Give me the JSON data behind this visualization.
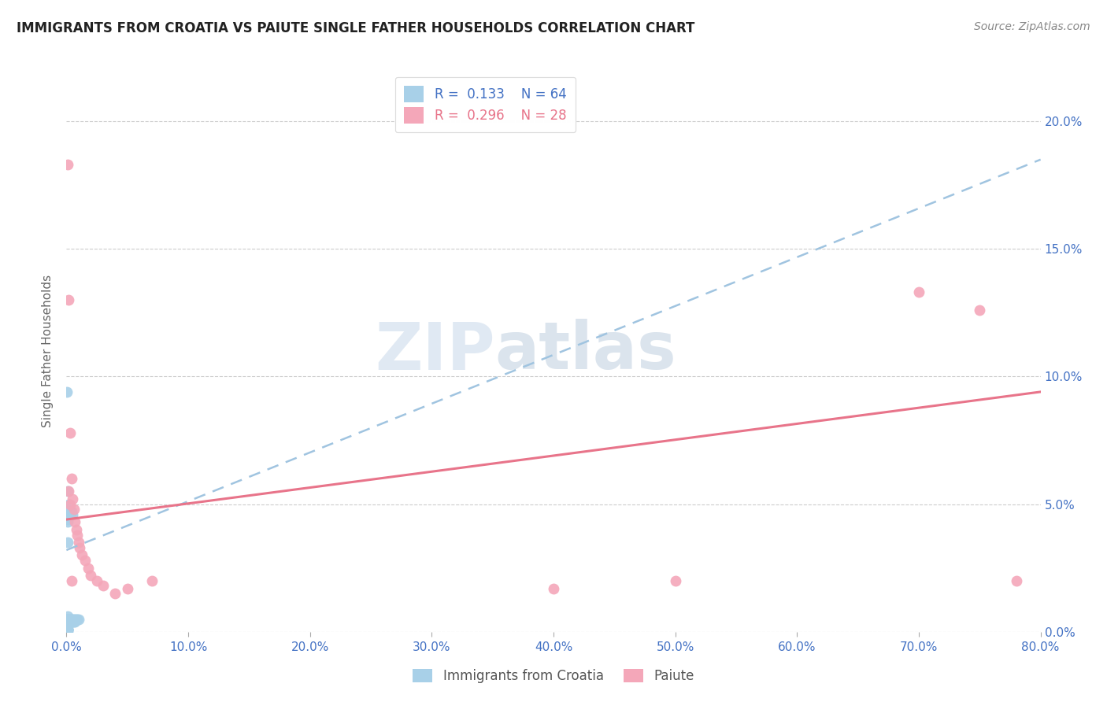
{
  "title": "IMMIGRANTS FROM CROATIA VS PAIUTE SINGLE FATHER HOUSEHOLDS CORRELATION CHART",
  "source": "Source: ZipAtlas.com",
  "xlabel_label": "Immigrants from Croatia",
  "ylabel_label": "Single Father Households",
  "legend_label1": "Immigrants from Croatia",
  "legend_label2": "Paiute",
  "R1": 0.133,
  "N1": 64,
  "R2": 0.296,
  "N2": 28,
  "color_blue": "#A8D0E8",
  "color_pink": "#F4A7B9",
  "color_blue_line": "#A0C4E0",
  "color_pink_line": "#E8748A",
  "color_blue_text": "#4472C4",
  "color_pink_text": "#E8748A",
  "color_axis": "#4472C4",
  "xlim": [
    0.0,
    0.8
  ],
  "ylim": [
    0.0,
    0.22
  ],
  "blue_scatter_x": [
    0.0003,
    0.0003,
    0.0003,
    0.0004,
    0.0004,
    0.0004,
    0.0005,
    0.0005,
    0.0005,
    0.0006,
    0.0006,
    0.0006,
    0.0007,
    0.0007,
    0.0008,
    0.0008,
    0.0009,
    0.0009,
    0.001,
    0.001,
    0.001,
    0.001,
    0.001,
    0.001,
    0.001,
    0.001,
    0.001,
    0.001,
    0.001,
    0.001,
    0.001,
    0.001,
    0.001,
    0.001,
    0.001,
    0.0015,
    0.0015,
    0.0015,
    0.002,
    0.002,
    0.002,
    0.002,
    0.002,
    0.003,
    0.003,
    0.003,
    0.003,
    0.004,
    0.004,
    0.004,
    0.005,
    0.005,
    0.005,
    0.006,
    0.006,
    0.007,
    0.007,
    0.008,
    0.009,
    0.01,
    0.0005,
    0.0003,
    0.0008,
    0.001
  ],
  "blue_scatter_y": [
    0.005,
    0.004,
    0.003,
    0.005,
    0.004,
    0.003,
    0.005,
    0.004,
    0.003,
    0.005,
    0.004,
    0.003,
    0.004,
    0.003,
    0.005,
    0.003,
    0.004,
    0.003,
    0.055,
    0.048,
    0.047,
    0.046,
    0.045,
    0.044,
    0.043,
    0.006,
    0.005,
    0.004,
    0.003,
    0.002,
    0.001,
    0.001,
    0.001,
    0.001,
    0.001,
    0.005,
    0.004,
    0.003,
    0.05,
    0.047,
    0.046,
    0.005,
    0.004,
    0.048,
    0.047,
    0.046,
    0.005,
    0.047,
    0.005,
    0.004,
    0.046,
    0.005,
    0.004,
    0.005,
    0.004,
    0.005,
    0.004,
    0.005,
    0.005,
    0.005,
    0.094,
    0.0,
    0.0,
    0.035
  ],
  "pink_scatter_x": [
    0.001,
    0.002,
    0.003,
    0.004,
    0.005,
    0.006,
    0.007,
    0.008,
    0.009,
    0.01,
    0.011,
    0.013,
    0.015,
    0.018,
    0.02,
    0.025,
    0.03,
    0.04,
    0.05,
    0.07,
    0.4,
    0.5,
    0.7,
    0.75,
    0.002,
    0.003,
    0.004,
    0.78
  ],
  "pink_scatter_y": [
    0.183,
    0.13,
    0.078,
    0.06,
    0.052,
    0.048,
    0.043,
    0.04,
    0.038,
    0.035,
    0.033,
    0.03,
    0.028,
    0.025,
    0.022,
    0.02,
    0.018,
    0.015,
    0.017,
    0.02,
    0.017,
    0.02,
    0.133,
    0.126,
    0.055,
    0.05,
    0.02,
    0.02
  ],
  "blue_trend_x": [
    0.0,
    0.8
  ],
  "blue_trend_y": [
    0.032,
    0.185
  ],
  "pink_trend_x": [
    0.0,
    0.8
  ],
  "pink_trend_y": [
    0.044,
    0.094
  ],
  "xtick_vals": [
    0.0,
    0.1,
    0.2,
    0.3,
    0.4,
    0.5,
    0.6,
    0.7,
    0.8
  ],
  "xtick_labels": [
    "0.0%",
    "10.0%",
    "20.0%",
    "30.0%",
    "40.0%",
    "50.0%",
    "60.0%",
    "70.0%",
    "80.0%"
  ],
  "ytick_vals": [
    0.0,
    0.05,
    0.1,
    0.15,
    0.2
  ],
  "ytick_labels": [
    "0.0%",
    "5.0%",
    "10.0%",
    "15.0%",
    "20.0%"
  ],
  "grid_color": "#CCCCCC",
  "watermark_text": "ZIPatlas",
  "watermark_zip_color": "#C8D8EA",
  "watermark_atlas_color": "#B8C8D8"
}
